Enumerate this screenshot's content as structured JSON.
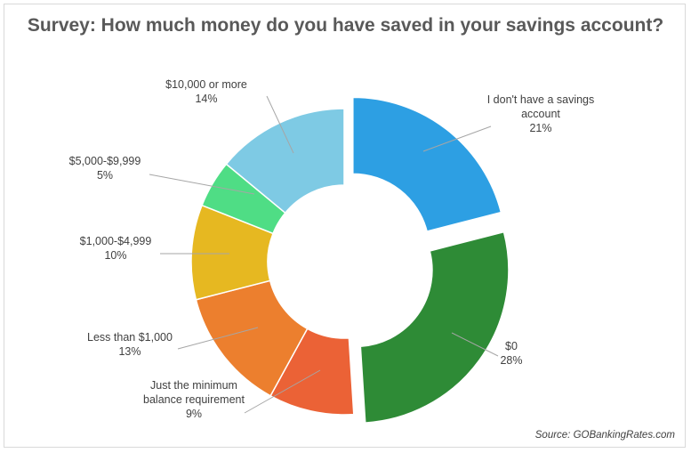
{
  "chart_data": {
    "type": "pie",
    "title": "Survey: How much money do you have saved in your savings account?",
    "slices": [
      {
        "label": "I don't have a savings account",
        "label_lines": [
          "I don't have a savings",
          "account"
        ],
        "value": 21,
        "value_label": "21%",
        "color": "#2d9fe3",
        "exploded": true
      },
      {
        "label": "$0",
        "label_lines": [
          "$0"
        ],
        "value": 28,
        "value_label": "28%",
        "color": "#2e8b36",
        "exploded": true
      },
      {
        "label": "Just the minimum balance requirement",
        "label_lines": [
          "Just the minimum",
          "balance requirement"
        ],
        "value": 9,
        "value_label": "9%",
        "color": "#eb6236",
        "exploded": false
      },
      {
        "label": "Less than $1,000",
        "label_lines": [
          "Less than $1,000"
        ],
        "value": 13,
        "value_label": "13%",
        "color": "#ec7f2e",
        "exploded": false
      },
      {
        "label": "$1,000-$4,999",
        "label_lines": [
          "$1,000-$4,999"
        ],
        "value": 10,
        "value_label": "10%",
        "color": "#e6b821",
        "exploded": false
      },
      {
        "label": "$5,000-$9,999",
        "label_lines": [
          "$5,000-$9,999"
        ],
        "value": 5,
        "value_label": "5%",
        "color": "#4fdd85",
        "exploded": false
      },
      {
        "label": "$10,000 or more",
        "label_lines": [
          "$10,000 or more"
        ],
        "value": 14,
        "value_label": "14%",
        "color": "#7ecae4",
        "exploded": false
      }
    ],
    "source": "Source: GOBankingRates.com"
  }
}
